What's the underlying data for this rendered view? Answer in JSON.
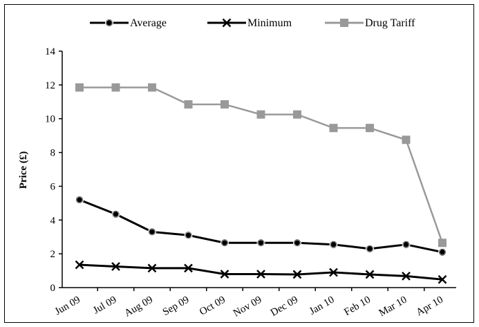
{
  "chart_data": {
    "type": "line",
    "title": "",
    "xlabel": "",
    "ylabel": "Price (£)",
    "ylim": [
      0,
      14
    ],
    "yticks": [
      "0",
      "2",
      "4",
      "6",
      "8",
      "10",
      "12",
      "14"
    ],
    "categories": [
      "Jun 09",
      "Jul 09",
      "Aug 09",
      "Sep 09",
      "Oct 09",
      "Nov 09",
      "Dec 09",
      "Jan 10",
      "Feb 10",
      "Mar 10",
      "Apr 10"
    ],
    "grid": false,
    "legend_position": "top",
    "series": [
      {
        "name": "Average",
        "marker": "circle",
        "color": "#000000",
        "values": [
          5.2,
          4.35,
          3.3,
          3.1,
          2.65,
          2.65,
          2.65,
          2.55,
          2.3,
          2.55,
          2.1
        ]
      },
      {
        "name": "Minimum",
        "marker": "x",
        "color": "#000000",
        "values": [
          1.35,
          1.25,
          1.15,
          1.15,
          0.8,
          0.8,
          0.78,
          0.9,
          0.78,
          0.68,
          0.48
        ]
      },
      {
        "name": "Drug Tariff",
        "marker": "square",
        "color": "#999999",
        "values": [
          11.85,
          11.85,
          11.85,
          10.85,
          10.85,
          10.25,
          10.25,
          9.45,
          9.45,
          8.75,
          2.65
        ]
      }
    ]
  }
}
